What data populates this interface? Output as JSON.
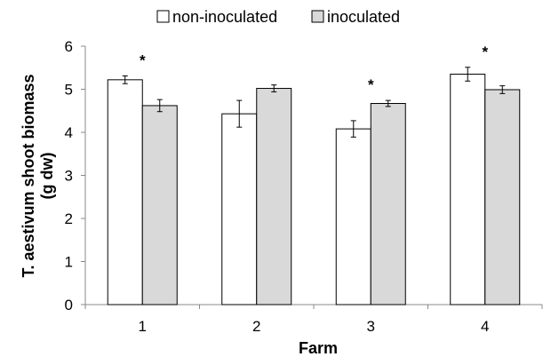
{
  "chart_data": {
    "type": "bar",
    "categories": [
      "1",
      "2",
      "3",
      "4"
    ],
    "series": [
      {
        "name": "non-inoculated",
        "values": [
          5.22,
          4.43,
          4.08,
          5.35
        ],
        "errors": [
          0.09,
          0.31,
          0.19,
          0.16
        ],
        "color": "#ffffff"
      },
      {
        "name": "inoculated",
        "values": [
          4.62,
          5.02,
          4.67,
          4.99
        ],
        "errors": [
          0.14,
          0.08,
          0.07,
          0.09
        ],
        "color": "#d9d9d9"
      }
    ],
    "significance": [
      {
        "category": "1",
        "label": "*"
      },
      {
        "category": "3",
        "label": "*"
      },
      {
        "category": "4",
        "label": "*"
      }
    ],
    "ylabel_line1": "T. aestivum shoot biomass",
    "ylabel_line2": "(g dw)",
    "xlabel": "Farm",
    "ylim": [
      0,
      6
    ],
    "yticks": [
      0,
      1,
      2,
      3,
      4,
      5,
      6
    ],
    "legend_position": "top",
    "grid": false
  }
}
